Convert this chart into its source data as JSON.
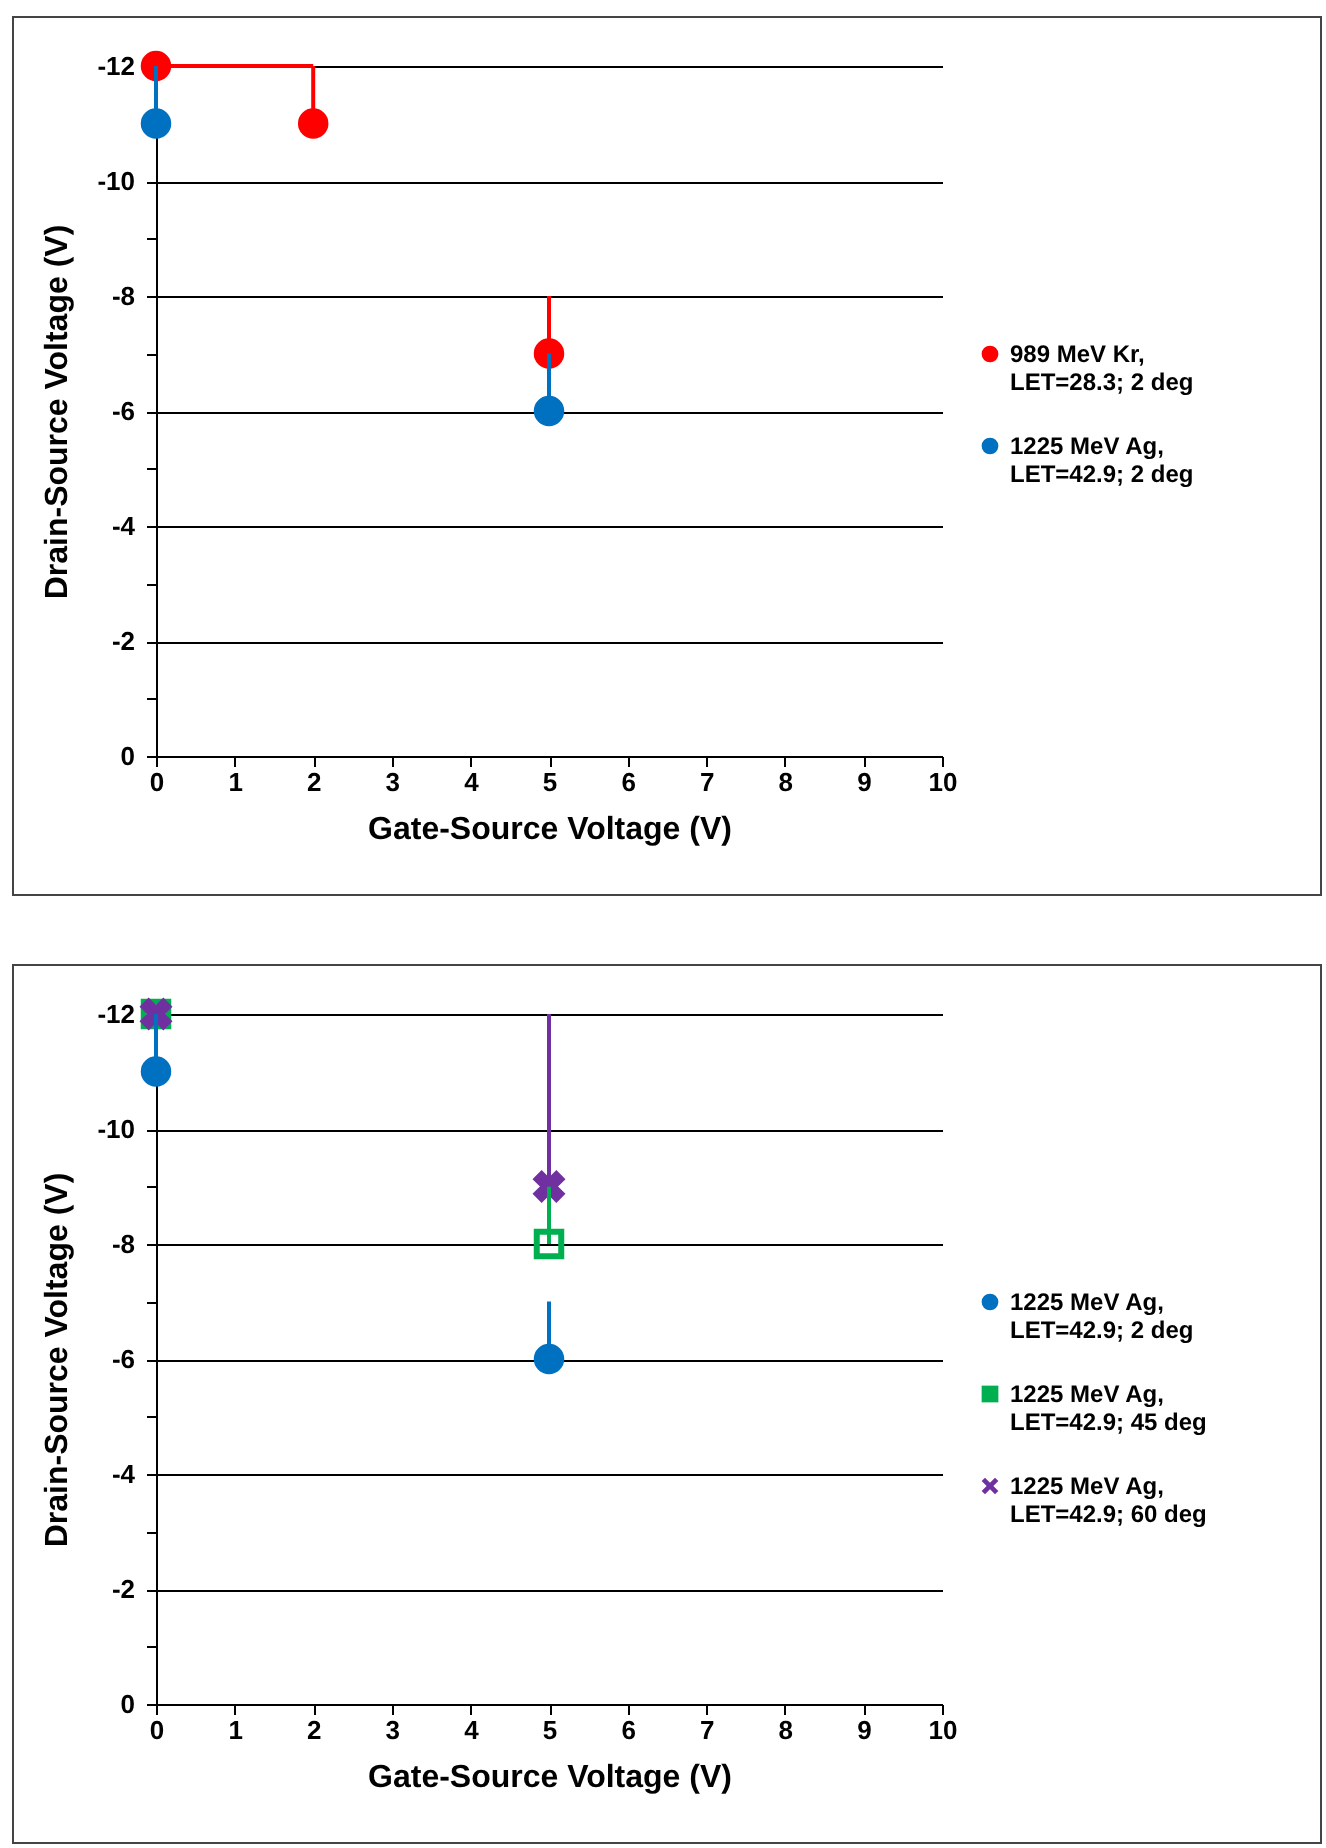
{
  "chart_data": [
    {
      "type": "scatter",
      "xlabel": "Gate-Source Voltage (V)",
      "ylabel": "Drain-Source Voltage (V)",
      "xlim": [
        0,
        10
      ],
      "xticks": [
        0,
        1,
        2,
        3,
        4,
        5,
        6,
        7,
        8,
        9,
        10
      ],
      "ylim": [
        0,
        -12
      ],
      "yticks": [
        0,
        {
          "value": -1,
          "label": null
        },
        -2,
        {
          "value": -3,
          "label": null
        },
        -4,
        {
          "value": -5,
          "label": null
        },
        -6,
        {
          "value": -7,
          "label": null
        },
        -8,
        {
          "value": -9,
          "label": null
        },
        -10,
        {
          "value": -11,
          "label": null
        },
        -12
      ],
      "grid": "y",
      "legend": "right",
      "series": [
        {
          "name": "989 MeV Kr, LET=28.3; 2 deg",
          "color": "#ff0000",
          "marker": "circle",
          "x": [
            0,
            2,
            5
          ],
          "values": [
            -12,
            -11,
            -7
          ],
          "errors": [
            null,
            [
              -12,
              -11
            ],
            [
              -8,
              -7
            ]
          ],
          "xerrors": [
            [
              0,
              2
            ],
            null,
            null
          ]
        },
        {
          "name": "1225 MeV Ag, LET=42.9; 2 deg",
          "color": "#0070c0",
          "marker": "circle",
          "x": [
            0,
            5
          ],
          "values": [
            -11,
            -6
          ],
          "errors": [
            [
              -12,
              -11
            ],
            [
              -7,
              -6
            ]
          ]
        }
      ]
    },
    {
      "type": "scatter",
      "xlabel": "Gate-Source Voltage (V)",
      "ylabel": "Drain-Source Voltage (V)",
      "xlim": [
        0,
        10
      ],
      "xticks": [
        0,
        1,
        2,
        3,
        4,
        5,
        6,
        7,
        8,
        9,
        10
      ],
      "ylim": [
        0,
        -12
      ],
      "yticks": [
        0,
        {
          "value": -1,
          "label": null
        },
        -2,
        {
          "value": -3,
          "label": null
        },
        -4,
        {
          "value": -5,
          "label": null
        },
        -6,
        {
          "value": -7,
          "label": null
        },
        -8,
        {
          "value": -9,
          "label": null
        },
        -10,
        {
          "value": -11,
          "label": null
        },
        -12
      ],
      "grid": "y",
      "legend": "right",
      "series": [
        {
          "name": "1225 MeV Ag, LET=42.9; 2 deg",
          "color": "#0070c0",
          "marker": "circle",
          "x": [
            0,
            5
          ],
          "values": [
            -11,
            -6
          ],
          "errors": [
            [
              -12,
              -11
            ],
            [
              -7,
              -6
            ]
          ]
        },
        {
          "name": "1225 MeV Ag, LET=42.9; 45 deg",
          "color": "#00b050",
          "marker": "square",
          "x": [
            0,
            5
          ],
          "values": [
            -12,
            -8
          ],
          "errors": [
            null,
            [
              -9,
              -8
            ]
          ]
        },
        {
          "name": "1225 MeV Ag, LET=42.9; 60 deg",
          "color": "#7030a0",
          "marker": "cross",
          "x": [
            0,
            5
          ],
          "values": [
            -12,
            -9
          ],
          "errors": [
            null,
            [
              -12,
              -9
            ]
          ]
        }
      ]
    }
  ]
}
